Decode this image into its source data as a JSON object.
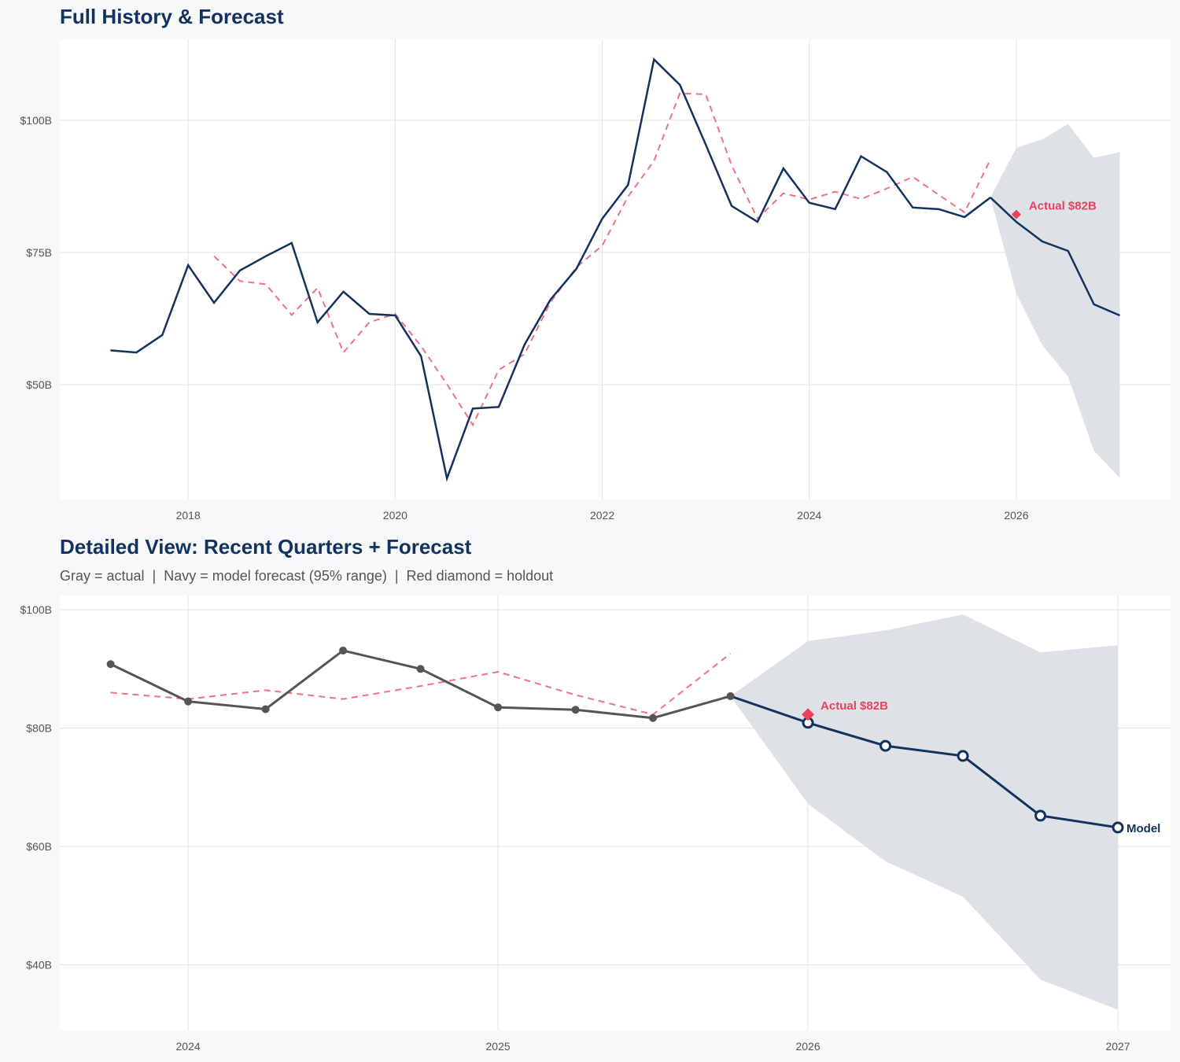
{
  "chart_data": [
    {
      "type": "line",
      "title": "Full History & Forecast",
      "xlim": [
        2016.76,
        2027.49
      ],
      "ylim": [
        28.3,
        115.3
      ],
      "x_ticks": [
        "2018",
        "2020",
        "2022",
        "2024",
        "2026"
      ],
      "x_tick_values": [
        2018,
        2020,
        2022,
        2024,
        2026
      ],
      "y_ticks": [
        "$50B",
        "$75B",
        "$100B"
      ],
      "y_tick_values": [
        50,
        75,
        100
      ],
      "grid": true,
      "actual": {
        "x": [
          2017.25,
          2017.5,
          2017.75,
          2018,
          2018.25,
          2018.5,
          2018.75,
          2019,
          2019.25,
          2019.5,
          2019.75,
          2020,
          2020.25,
          2020.5,
          2020.75,
          2021,
          2021.25,
          2021.5,
          2021.75,
          2022,
          2022.25,
          2022.5,
          2022.75,
          2023,
          2023.25,
          2023.5,
          2023.75,
          2024,
          2024.25,
          2024.5,
          2024.75,
          2025,
          2025.25,
          2025.5,
          2025.75
        ],
        "y": [
          56.5,
          56.1,
          59.4,
          72.6,
          65.5,
          71.6,
          74.3,
          76.8,
          61.8,
          67.6,
          63.4,
          63.1,
          55.4,
          32.3,
          45.5,
          45.8,
          57.6,
          66.1,
          71.9,
          81.4,
          87.8,
          111.5,
          106.7,
          95.4,
          83.8,
          80.8,
          90.9,
          84.4,
          83.2,
          93.2,
          90.2,
          83.5,
          83.2,
          81.7,
          85.4
        ]
      },
      "dashed": {
        "x": [
          2018.25,
          2018.5,
          2018.75,
          2019,
          2019.25,
          2019.5,
          2019.75,
          2020,
          2020.25,
          2020.5,
          2020.75,
          2021,
          2021.25,
          2021.5,
          2021.75,
          2022,
          2022.25,
          2022.5,
          2022.75,
          2023,
          2023.25,
          2023.5,
          2023.75,
          2024,
          2024.25,
          2024.5,
          2024.75,
          2025,
          2025.25,
          2025.5,
          2025.75
        ],
        "y": [
          74.3,
          69.6,
          69.0,
          63.2,
          68.3,
          56.1,
          61.8,
          63.4,
          57.3,
          50.1,
          42.4,
          52.8,
          55.8,
          65.6,
          72.2,
          76.3,
          85.6,
          92.3,
          105.1,
          104.9,
          91.5,
          81.4,
          86.2,
          85.0,
          86.5,
          85.1,
          87.1,
          89.3,
          85.9,
          82.6,
          92.6
        ]
      },
      "forecast": {
        "x": [
          2025.75,
          2026,
          2026.25,
          2026.5,
          2026.75,
          2027
        ],
        "y": [
          85.4,
          80.8,
          77.1,
          75.3,
          65.2,
          63.1
        ],
        "upper": [
          85.4,
          94.8,
          96.4,
          99.3,
          92.9,
          94.0
        ],
        "lower": [
          85.4,
          67.2,
          57.5,
          51.5,
          37.5,
          32.4
        ]
      },
      "holdout": {
        "x": 2026,
        "y": 82.2,
        "label": "Actual $82B"
      },
      "colors": {
        "actual": "#14325e",
        "forecast": "#14325e",
        "dashed": "#f07088",
        "band": "#dce0e6",
        "holdout": "#e8425e"
      }
    },
    {
      "type": "line",
      "title": "Detailed View: Recent Quarters + Forecast",
      "subtitle": "Gray = actual  |  Navy = model forecast (95% range)  |  Red diamond = holdout",
      "xlim": [
        2023.586,
        2027.17
      ],
      "ylim": [
        28.9,
        102.4
      ],
      "x_ticks": [
        "2024",
        "2025",
        "2026",
        "2027"
      ],
      "x_tick_values": [
        2024,
        2025,
        2026,
        2027
      ],
      "y_ticks": [
        "$40B",
        "$60B",
        "$80B",
        "$100B"
      ],
      "y_tick_values": [
        40,
        60,
        80,
        100
      ],
      "grid": true,
      "actual": {
        "x": [
          2023.75,
          2024,
          2024.25,
          2024.5,
          2024.75,
          2025,
          2025.25,
          2025.5,
          2025.75
        ],
        "y": [
          90.8,
          84.5,
          83.2,
          93.1,
          90.0,
          83.5,
          83.1,
          81.7,
          85.4
        ]
      },
      "dashed": {
        "x": [
          2023.75,
          2024,
          2024.25,
          2024.5,
          2024.75,
          2025,
          2025.25,
          2025.5,
          2025.75
        ],
        "y": [
          86.0,
          84.9,
          86.4,
          84.9,
          87.1,
          89.5,
          85.6,
          82.3,
          92.6
        ]
      },
      "forecast": {
        "x": [
          2025.75,
          2026,
          2026.25,
          2026.5,
          2026.75,
          2027
        ],
        "y": [
          85.4,
          80.9,
          77.0,
          75.3,
          65.2,
          63.2
        ],
        "upper": [
          85.4,
          94.7,
          96.5,
          99.2,
          92.8,
          94.0
        ],
        "lower": [
          85.4,
          67.2,
          57.5,
          51.5,
          37.5,
          32.4
        ],
        "label": "Model"
      },
      "holdout": {
        "x": 2026,
        "y": 82.3,
        "label": "Actual $82B"
      },
      "colors": {
        "actual": "#555555",
        "forecast": "#14325e",
        "dashed": "#f07088",
        "band": "#dce0e6",
        "holdout": "#e8425e"
      }
    }
  ]
}
